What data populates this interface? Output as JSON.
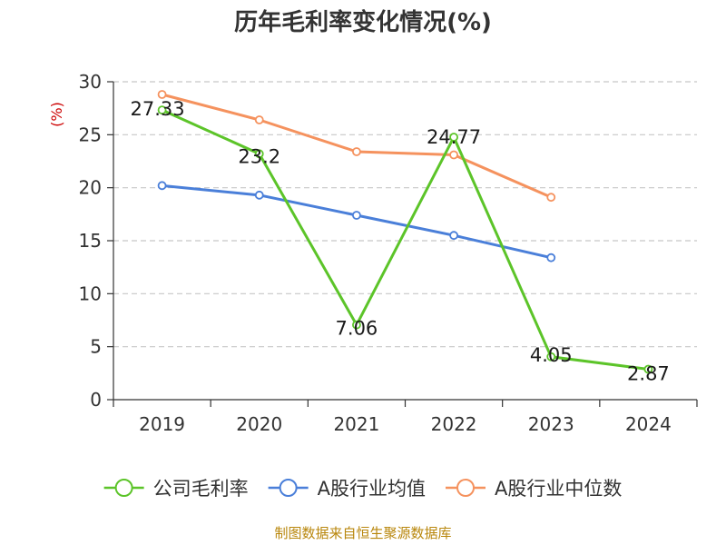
{
  "chart_data": {
    "type": "line",
    "title": "历年毛利率变化情况(%)",
    "ylabel": "(%)",
    "xlabel": "",
    "categories": [
      "2019",
      "2020",
      "2021",
      "2022",
      "2023",
      "2024"
    ],
    "ylim": [
      0,
      30
    ],
    "yticks": [
      0,
      5,
      10,
      15,
      20,
      25,
      30
    ],
    "grid": "horizontal-dashed",
    "legend_position": "bottom",
    "series": [
      {
        "name": "公司毛利率",
        "color": "#5cc429",
        "values": [
          27.33,
          23.2,
          7.06,
          24.77,
          4.05,
          2.87
        ],
        "data_labels": [
          "27.33",
          "23.2",
          "7.06",
          "24.77",
          "4.05",
          "2.87"
        ]
      },
      {
        "name": "A股行业均值",
        "color": "#4a7fd9",
        "values": [
          20.2,
          19.3,
          17.4,
          15.5,
          13.4,
          null
        ]
      },
      {
        "name": "A股行业中位数",
        "color": "#f5925e",
        "values": [
          28.8,
          26.4,
          23.4,
          23.1,
          19.1,
          null
        ]
      }
    ]
  },
  "footer": {
    "source": "制图数据来自恒生聚源数据库"
  }
}
